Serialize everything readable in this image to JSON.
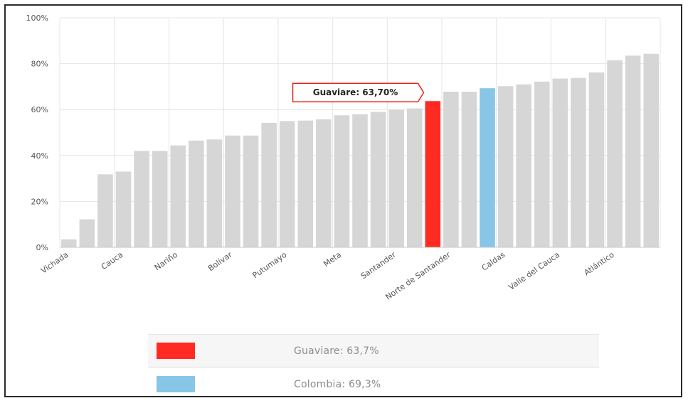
{
  "chart_data": {
    "type": "bar",
    "title": "",
    "xlabel": "",
    "ylabel": "",
    "ylim": [
      0,
      100
    ],
    "yticks": [
      "0%",
      "20%",
      "40%",
      "60%",
      "80%",
      "100%"
    ],
    "grid": true,
    "values": [
      3.5,
      12.2,
      31.8,
      33.0,
      42.0,
      42.0,
      44.4,
      46.5,
      47.0,
      48.7,
      48.7,
      54.2,
      55.0,
      55.2,
      55.8,
      57.5,
      58.0,
      59.0,
      60.0,
      60.5,
      63.7,
      67.8,
      67.8,
      69.3,
      70.2,
      71.0,
      72.2,
      73.5,
      73.8,
      76.2,
      81.5,
      83.5,
      84.3
    ],
    "category_labels": [
      {
        "index": 0,
        "label": "Vichada"
      },
      {
        "index": 3,
        "label": "Cauca"
      },
      {
        "index": 6,
        "label": "Nariño"
      },
      {
        "index": 9,
        "label": "Bolívar"
      },
      {
        "index": 12,
        "label": "Putumayo"
      },
      {
        "index": 15,
        "label": "Meta"
      },
      {
        "index": 18,
        "label": "Santander"
      },
      {
        "index": 21,
        "label": "Norte de Santander"
      },
      {
        "index": 24,
        "label": "Caldas"
      },
      {
        "index": 27,
        "label": "Valle del Cauca"
      },
      {
        "index": 30,
        "label": "Atlántico"
      }
    ],
    "highlight": {
      "index": 20,
      "color": "#ff2a22",
      "tooltip": "Guaviare: 63,70%"
    },
    "reference": {
      "index": 23,
      "color": "#87c6e6"
    },
    "default_color": "#d6d6d6",
    "legend": [
      {
        "label": "Guaviare:  63,7%",
        "color": "#ff2a22"
      },
      {
        "label": "Colombia:  69,3%",
        "color": "#87c6e6"
      }
    ]
  }
}
